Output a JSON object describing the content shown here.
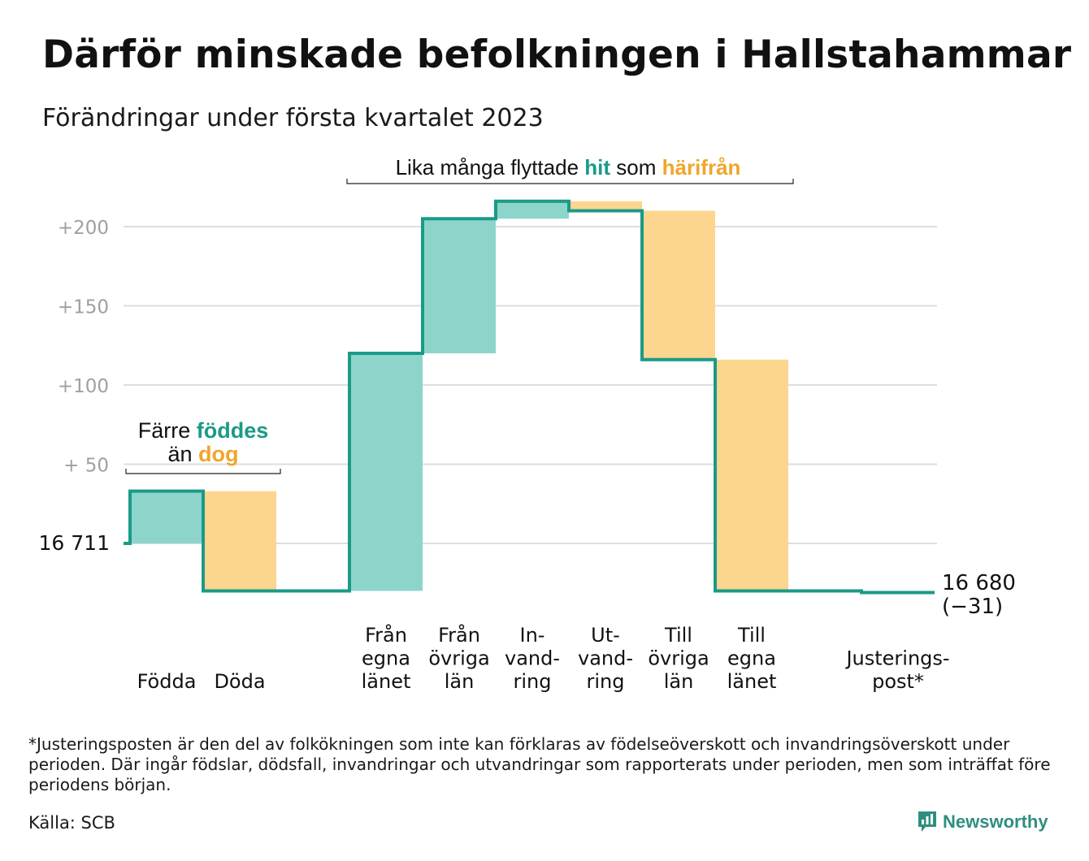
{
  "title": "Därför minskade befolkningen i Hallstahammar",
  "subtitle": "Förändringar under första kvartalet 2023",
  "colors": {
    "teal_fill": "#8dd5cb",
    "orange_fill": "#fcd68f",
    "teal_line": "#1b9a87",
    "teal_text": "#1b9a87",
    "orange_text": "#f0a52c",
    "grid": "#dddddd",
    "axis_text": "#a0a0a0"
  },
  "chart_data": {
    "type": "waterfall",
    "baseline_label": "16 711",
    "end_label": "16 680",
    "end_change_label": "(−31)",
    "y_tick_labels": [
      "+200",
      "+150",
      "+100",
      "+ 50"
    ],
    "ylim": [
      -30,
      220
    ],
    "grid": true,
    "steps": [
      {
        "category": "Födda",
        "label_lines": [
          "Födda"
        ],
        "value": 33,
        "direction": "in"
      },
      {
        "category": "Döda",
        "label_lines": [
          "Döda"
        ],
        "value": -63,
        "direction": "out"
      },
      {
        "category": "",
        "label_lines": [],
        "value": 0,
        "direction": "none"
      },
      {
        "category": "Från egna länet",
        "label_lines": [
          "Från",
          "egna",
          "länet"
        ],
        "value": 150,
        "direction": "in"
      },
      {
        "category": "Från övriga län",
        "label_lines": [
          "Från",
          "övriga",
          "län"
        ],
        "value": 85,
        "direction": "in"
      },
      {
        "category": "In-vandring",
        "label_lines": [
          "In-",
          "vand-",
          "ring"
        ],
        "value": 11,
        "direction": "in"
      },
      {
        "category": "Ut-vandring",
        "label_lines": [
          "Ut-",
          "vand-",
          "ring"
        ],
        "value": -6,
        "direction": "out"
      },
      {
        "category": "Till övriga län",
        "label_lines": [
          "Till",
          "övriga",
          "län"
        ],
        "value": -94,
        "direction": "out"
      },
      {
        "category": "Till egna länet",
        "label_lines": [
          "Till",
          "egna",
          "länet"
        ],
        "value": -146,
        "direction": "out"
      },
      {
        "category": "",
        "label_lines": [],
        "value": 0,
        "direction": "none"
      },
      {
        "category": "Justeringspost*",
        "label_lines": [
          "Justerings-",
          "post*"
        ],
        "value": -1,
        "direction": "out"
      }
    ],
    "annotations": [
      {
        "id": "births",
        "parts": [
          {
            "text": "Färre ",
            "color": "dark",
            "bold": false
          },
          {
            "text": "föddes",
            "color": "teal",
            "bold": true
          }
        ],
        "parts2": [
          {
            "text": "än ",
            "color": "dark",
            "bold": false
          },
          {
            "text": "dog",
            "color": "orange",
            "bold": true
          }
        ]
      },
      {
        "id": "moves",
        "parts": [
          {
            "text": "Lika många flyttade ",
            "color": "dark",
            "bold": false
          },
          {
            "text": "hit",
            "color": "teal",
            "bold": true
          },
          {
            "text": " som ",
            "color": "dark",
            "bold": false
          },
          {
            "text": "härifrån",
            "color": "orange",
            "bold": true
          }
        ]
      }
    ]
  },
  "footnote": "*Justeringsposten är den del av folkökningen som inte kan förklaras av födelseöverskott och invandringsöverskott under perioden. Där ingår födslar, dödsfall, invandringar och utvandringar som rapporterats under perioden, men som inträffat före periodens början.",
  "source": "Källa: SCB",
  "brand": {
    "name": "Newsworthy",
    "icon": "newsworthy-logo-icon"
  }
}
